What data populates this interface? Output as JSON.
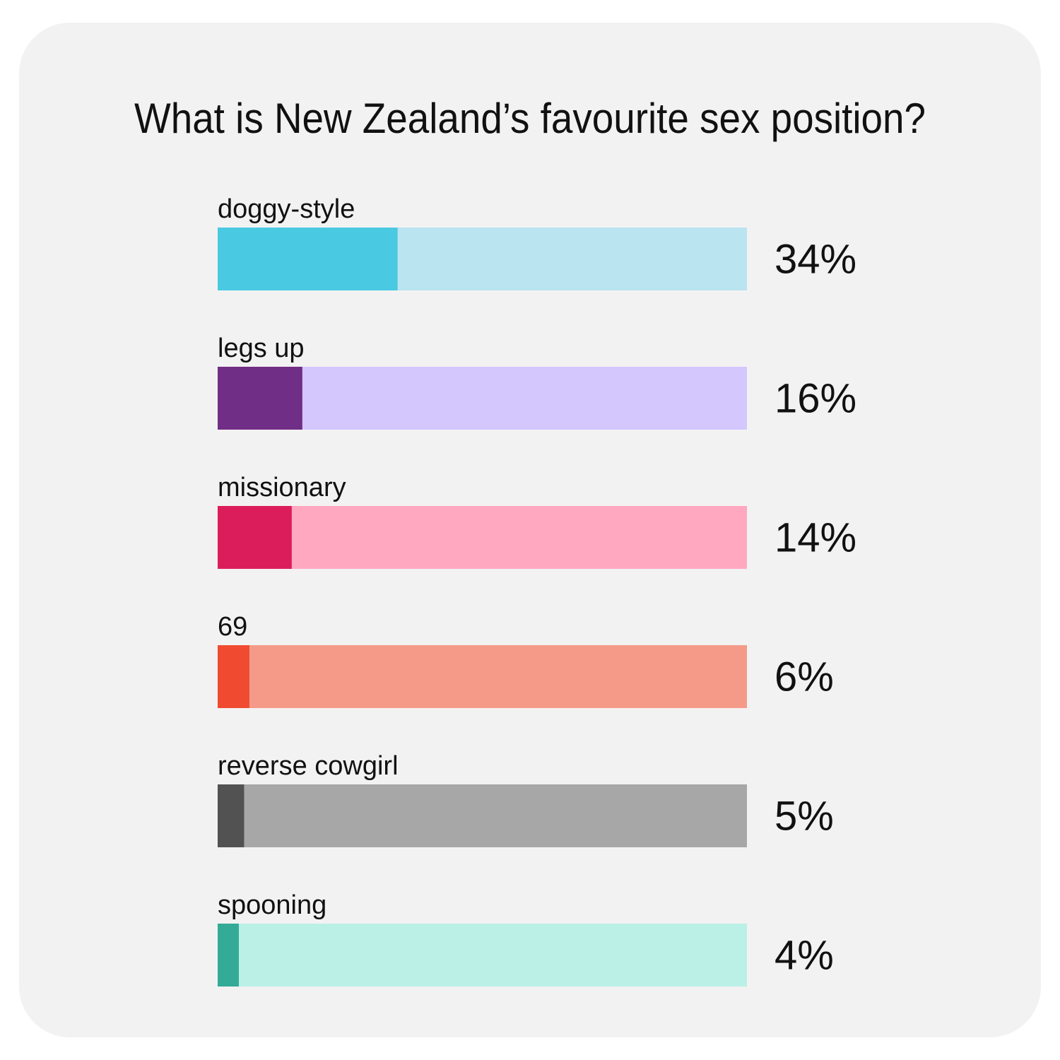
{
  "chart_data": {
    "type": "bar",
    "orientation": "horizontal",
    "title": "What is New Zealand’s favourite sex position?",
    "categories": [
      "doggy-style",
      "legs up",
      "missionary",
      "69",
      "reverse cowgirl",
      "spooning"
    ],
    "values": [
      34,
      16,
      14,
      6,
      5,
      4
    ],
    "value_labels": [
      "34%",
      "16%",
      "14%",
      "6%",
      "5%",
      "4%"
    ],
    "colors": [
      "#4ac9e3",
      "#712e86",
      "#db1e5b",
      "#f04b30",
      "#525252",
      "#33ab96"
    ],
    "track_colors": [
      "#bae4f0",
      "#d3c7fe",
      "#ffa8c0",
      "#f59a89",
      "#a7a7a7",
      "#baf0e6"
    ],
    "xlim": [
      0,
      100
    ]
  }
}
